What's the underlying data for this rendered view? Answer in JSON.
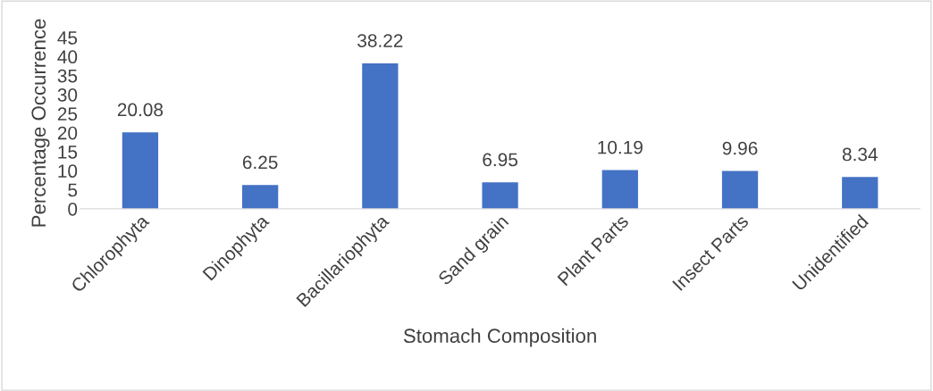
{
  "chart_data": {
    "type": "bar",
    "xlabel": "Stomach Composition",
    "ylabel": "Percentage Occurrence",
    "categories": [
      "Chlorophyta",
      "Dinophyta",
      "Bacillariophyta",
      "Sand grain",
      "Plant Parts",
      "Insect Parts",
      "Unidentified"
    ],
    "values": [
      20.08,
      6.25,
      38.22,
      6.95,
      10.19,
      9.96,
      8.34
    ],
    "color": "#4472c4",
    "ylim": [
      0,
      45
    ],
    "yticks": [
      0,
      5,
      10,
      15,
      20,
      25,
      30,
      35,
      40,
      45
    ],
    "grid": false,
    "data_labels": true
  }
}
